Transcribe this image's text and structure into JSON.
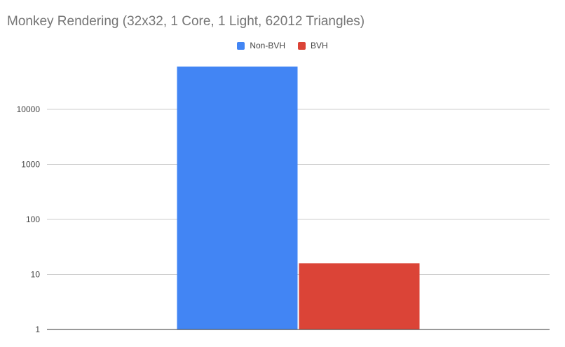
{
  "chart_data": {
    "type": "bar",
    "title": "Monkey Rendering (32x32, 1 Core, 1 Light, 62012 Triangles)",
    "xlabel": "",
    "ylabel": "",
    "categories": [
      ""
    ],
    "y_scale": "log",
    "ylim": [
      1,
      100000
    ],
    "y_ticks": [
      1,
      10,
      100,
      1000,
      10000
    ],
    "y_tick_labels": [
      "1",
      "10",
      "100",
      "1000",
      "10000"
    ],
    "legend_position": "top-center",
    "grid": true,
    "series": [
      {
        "name": "Non-BVH",
        "color": "#4285f4",
        "values": [
          60000
        ]
      },
      {
        "name": "BVH",
        "color": "#db4437",
        "values": [
          16
        ]
      }
    ]
  }
}
